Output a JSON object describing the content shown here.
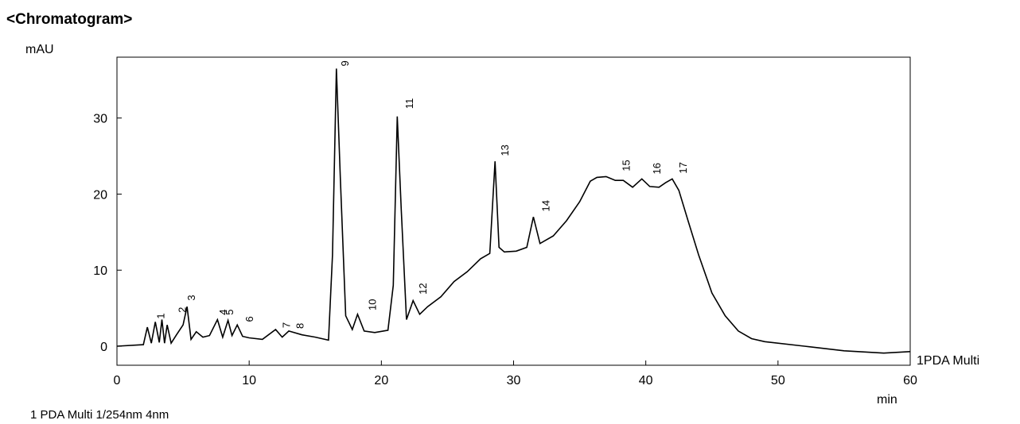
{
  "title": "<Chromatogram>",
  "footer": "1 PDA Multi 1/254nm 4nm",
  "chart_data": {
    "type": "line",
    "ylabel": "mAU",
    "xlabel": "min",
    "xlim": [
      0,
      60
    ],
    "ylim": [
      -2.5,
      38
    ],
    "x_ticks": [
      0,
      10,
      20,
      30,
      40,
      50,
      60
    ],
    "y_ticks": [
      0,
      10,
      20,
      30
    ],
    "grid": false,
    "series": [
      {
        "name": "1PDA Multi",
        "x": [
          0,
          2,
          2.3,
          2.6,
          2.9,
          3.2,
          3.4,
          3.6,
          3.8,
          4.1,
          4.5,
          5.0,
          5.3,
          5.6,
          6.0,
          6.5,
          7.0,
          7.6,
          8.0,
          8.4,
          8.7,
          9.1,
          9.5,
          10.0,
          11.0,
          12.0,
          12.5,
          13.0,
          14.0,
          15.0,
          16.0,
          16.3,
          16.6,
          16.9,
          17.3,
          17.8,
          18.2,
          18.7,
          19.5,
          20.5,
          20.9,
          21.2,
          21.5,
          21.9,
          22.4,
          22.9,
          23.5,
          24.5,
          25.5,
          26.5,
          27.5,
          28.2,
          28.6,
          28.9,
          29.3,
          30.2,
          31.0,
          31.5,
          32.0,
          33.0,
          34.0,
          35.0,
          35.8,
          36.3,
          37.0,
          37.7,
          38.3,
          39.0,
          39.7,
          40.3,
          41.0,
          41.5,
          42.0,
          42.5,
          43.2,
          44.0,
          45.0,
          46.0,
          47.0,
          48.0,
          49.0,
          52.0,
          55.0,
          58.0,
          60.0
        ],
        "values": [
          0,
          0.2,
          2.5,
          0.4,
          3.2,
          0.5,
          3.5,
          0.4,
          2.8,
          0.4,
          1.5,
          2.8,
          5.2,
          0.9,
          1.9,
          1.2,
          1.4,
          3.5,
          1.2,
          3.4,
          1.4,
          2.8,
          1.3,
          1.1,
          0.9,
          2.2,
          1.2,
          2.0,
          1.5,
          1.2,
          0.8,
          12,
          36.5,
          22,
          4,
          2.2,
          4.2,
          2.0,
          1.8,
          2.1,
          8,
          30.2,
          18,
          3.5,
          6.0,
          4.2,
          5.2,
          6.5,
          8.5,
          9.8,
          11.5,
          12.2,
          24.3,
          13,
          12.4,
          12.5,
          13.0,
          17,
          13.5,
          14.5,
          16.5,
          19,
          21.7,
          22.2,
          22.3,
          21.8,
          21.8,
          20.9,
          22.0,
          21.0,
          20.9,
          21.5,
          22.0,
          20.5,
          16.5,
          12.0,
          7.0,
          4.0,
          2.0,
          1.0,
          0.6,
          0.0,
          -0.6,
          -0.9,
          -0.7
        ]
      }
    ],
    "peak_labels": [
      {
        "label": "1",
        "x": 3.6,
        "y": 3.6
      },
      {
        "label": "2",
        "x": 5.2,
        "y": 4.4
      },
      {
        "label": "3",
        "x": 5.9,
        "y": 6.0
      },
      {
        "label": "4",
        "x": 8.3,
        "y": 4.1
      },
      {
        "label": "5",
        "x": 8.8,
        "y": 4.1
      },
      {
        "label": "6",
        "x": 10.3,
        "y": 3.2
      },
      {
        "label": "7",
        "x": 13.1,
        "y": 2.4
      },
      {
        "label": "8",
        "x": 14.1,
        "y": 2.3
      },
      {
        "label": "9",
        "x": 17.5,
        "y": 36.8
      },
      {
        "label": "10",
        "x": 19.6,
        "y": 4.7
      },
      {
        "label": "11",
        "x": 22.4,
        "y": 31.2
      },
      {
        "label": "12",
        "x": 23.4,
        "y": 6.8
      },
      {
        "label": "13",
        "x": 29.6,
        "y": 25.0
      },
      {
        "label": "14",
        "x": 32.7,
        "y": 17.7
      },
      {
        "label": "15",
        "x": 38.8,
        "y": 23.0
      },
      {
        "label": "16",
        "x": 41.1,
        "y": 22.6
      },
      {
        "label": "17",
        "x": 43.1,
        "y": 22.7
      }
    ]
  }
}
